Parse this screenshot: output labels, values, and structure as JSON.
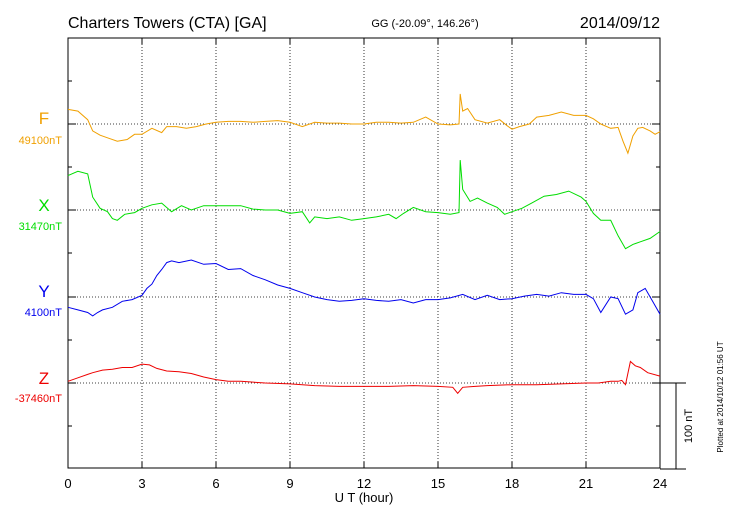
{
  "chart_data": {
    "type": "line",
    "title": "Charters Towers (CTA)  [GA]",
    "coords": "GG (-20.09°, 146.26°)",
    "date": "2014/09/12",
    "xlabel": "U T (hour)",
    "xlim": [
      0,
      24
    ],
    "xticks": [
      "0",
      "3",
      "6",
      "9",
      "12",
      "15",
      "18",
      "21",
      "24"
    ],
    "scale_label": "100 nT",
    "scale_nT": 100,
    "plotted_note": "Plotted at 2014/10/12 01:56 UT",
    "grid": true,
    "series": [
      {
        "name": "F",
        "baseline_label": "49100nT",
        "color": "#f0a000",
        "x": [
          0,
          0.4,
          0.8,
          1.0,
          1.3,
          1.6,
          2.0,
          2.4,
          2.7,
          3.0,
          3.4,
          3.8,
          4.0,
          4.4,
          4.8,
          5.2,
          5.6,
          6.0,
          6.5,
          7.0,
          7.5,
          8.0,
          8.5,
          9.0,
          9.5,
          10.0,
          10.5,
          11.0,
          11.5,
          12.0,
          12.5,
          13.0,
          13.5,
          14.0,
          14.5,
          15.0,
          15.5,
          15.85,
          15.9,
          16.0,
          16.2,
          16.5,
          17.0,
          17.5,
          17.8,
          18.0,
          18.3,
          18.7,
          19.0,
          19.5,
          20.0,
          20.5,
          21.0,
          21.3,
          21.6,
          22.0,
          22.3,
          22.5,
          22.7,
          22.9,
          23.1,
          23.3,
          23.6,
          23.8,
          24.0
        ],
        "y": [
          17,
          15,
          5,
          -8,
          -13,
          -16,
          -20,
          -18,
          -12,
          -12,
          -5,
          -10,
          -3,
          -3,
          -5,
          -3,
          0,
          2,
          3,
          3,
          2,
          3,
          4,
          2,
          -3,
          2,
          1,
          1,
          0,
          0,
          2,
          2,
          1,
          2,
          8,
          0,
          -1,
          0,
          35,
          15,
          18,
          5,
          1,
          5,
          -2,
          -6,
          -3,
          0,
          8,
          10,
          14,
          10,
          10,
          6,
          0,
          -5,
          -4,
          -20,
          -34,
          -14,
          -5,
          -4,
          -8,
          -12,
          -9
        ]
      },
      {
        "name": "X",
        "baseline_label": "31470nT",
        "color": "#00dd00",
        "x": [
          0,
          0.4,
          0.8,
          1.0,
          1.3,
          1.6,
          1.8,
          2.0,
          2.3,
          2.7,
          3.0,
          3.4,
          3.8,
          4.2,
          4.6,
          5.0,
          5.5,
          6.0,
          6.5,
          7.0,
          7.5,
          8.0,
          8.5,
          9.0,
          9.5,
          9.8,
          10.0,
          10.5,
          11.0,
          11.5,
          12.0,
          12.5,
          13.0,
          13.3,
          13.6,
          14.0,
          14.5,
          15.0,
          15.5,
          15.85,
          15.9,
          16.0,
          16.3,
          16.6,
          17.0,
          17.4,
          17.7,
          18.0,
          18.4,
          18.8,
          19.3,
          19.8,
          20.3,
          20.8,
          21.0,
          21.3,
          21.6,
          22.0,
          22.3,
          22.6,
          22.9,
          23.2,
          23.6,
          24.0
        ],
        "y": [
          40,
          45,
          42,
          15,
          2,
          -2,
          -10,
          -12,
          -5,
          -3,
          2,
          6,
          8,
          -2,
          5,
          0,
          5,
          5,
          5,
          5,
          1,
          0,
          0,
          -4,
          -2,
          -15,
          -8,
          -10,
          -8,
          -12,
          -10,
          -8,
          -5,
          -10,
          -4,
          3,
          -2,
          -3,
          -5,
          -3,
          58,
          24,
          10,
          14,
          8,
          3,
          -5,
          -2,
          2,
          8,
          16,
          18,
          22,
          15,
          10,
          -4,
          -12,
          -12,
          -30,
          -45,
          -40,
          -37,
          -33,
          -25
        ]
      },
      {
        "name": "Y",
        "baseline_label": "4100nT",
        "color": "#0000ee",
        "x": [
          0,
          0.4,
          0.8,
          1.0,
          1.2,
          1.4,
          1.8,
          2.2,
          2.6,
          3.0,
          3.2,
          3.4,
          3.6,
          3.8,
          4.0,
          4.2,
          4.5,
          5.0,
          5.5,
          6.0,
          6.5,
          7.0,
          7.5,
          8.0,
          8.5,
          9.0,
          9.5,
          10.0,
          10.5,
          11.0,
          11.5,
          12.0,
          12.5,
          13.0,
          13.5,
          14.0,
          14.5,
          15.0,
          15.5,
          16.0,
          16.5,
          17.0,
          17.5,
          18.0,
          18.5,
          19.0,
          19.5,
          20.0,
          20.5,
          21.0,
          21.3,
          21.6,
          22.0,
          22.3,
          22.6,
          22.9,
          23.1,
          23.4,
          23.7,
          24.0
        ],
        "y": [
          -12,
          -15,
          -18,
          -22,
          -18,
          -15,
          -12,
          -5,
          -3,
          2,
          10,
          15,
          25,
          32,
          40,
          42,
          40,
          43,
          38,
          39,
          32,
          33,
          25,
          20,
          14,
          10,
          5,
          0,
          -3,
          -5,
          -4,
          -2,
          -4,
          -5,
          -3,
          -7,
          -3,
          -3,
          -1,
          3,
          -3,
          2,
          -3,
          -2,
          1,
          3,
          1,
          5,
          3,
          3,
          -2,
          -18,
          0,
          -2,
          -20,
          -15,
          5,
          10,
          -5,
          -20
        ]
      },
      {
        "name": "Z",
        "baseline_label": "-37460nT",
        "color": "#ee0000",
        "x": [
          0,
          0.4,
          0.8,
          1.0,
          1.4,
          1.8,
          2.2,
          2.6,
          3.0,
          3.3,
          3.6,
          4.0,
          4.5,
          5.0,
          5.5,
          6.0,
          6.5,
          7.0,
          8.0,
          9.0,
          10.0,
          11.0,
          12.0,
          13.0,
          14.0,
          15.0,
          15.6,
          15.8,
          16.0,
          16.5,
          17.0,
          18.0,
          19.0,
          20.0,
          21.0,
          21.5,
          22.0,
          22.3,
          22.45,
          22.6,
          22.8,
          23.0,
          23.2,
          23.5,
          24.0
        ],
        "y": [
          2,
          6,
          10,
          12,
          15,
          16,
          18,
          18,
          22,
          21,
          17,
          14,
          13,
          11,
          7,
          4,
          2,
          2,
          0,
          -1,
          -3,
          -4,
          -4,
          -4,
          -3,
          -4,
          -5,
          -12,
          -5,
          -4,
          -3,
          -2,
          -2,
          -1,
          0,
          0,
          2,
          2,
          3,
          -2,
          25,
          20,
          18,
          12,
          8
        ]
      }
    ]
  }
}
